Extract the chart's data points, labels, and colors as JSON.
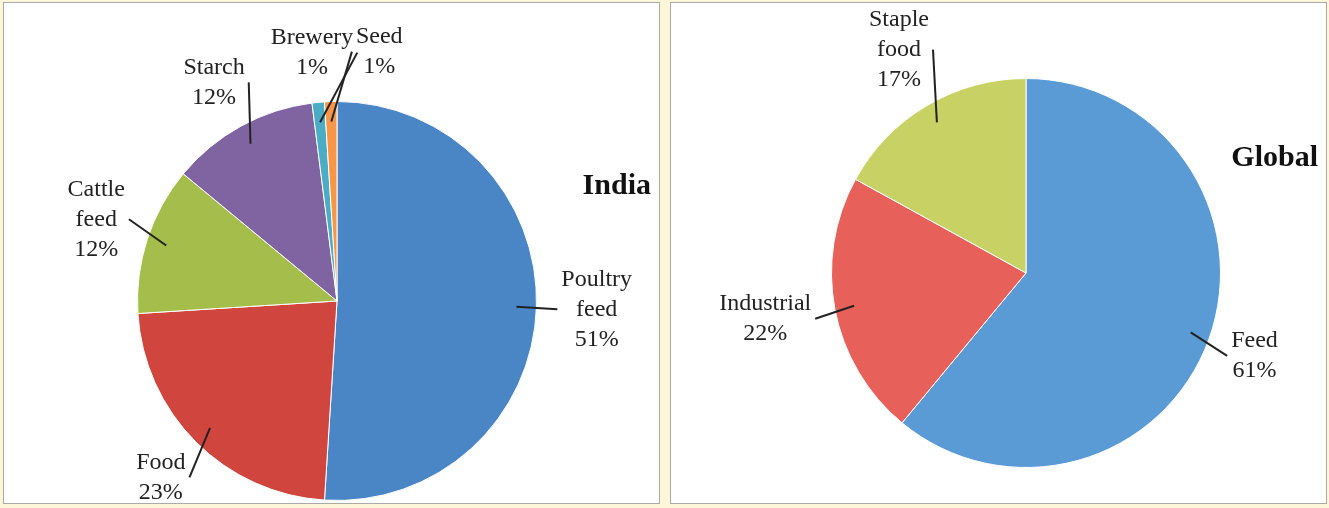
{
  "chart_data": [
    {
      "type": "pie",
      "title": "India",
      "categories": [
        "Poultry feed",
        "Food",
        "Cattle feed",
        "Starch",
        "Brewery",
        "Seed"
      ],
      "values": [
        51,
        23,
        12,
        12,
        1,
        1
      ],
      "value_labels": [
        "51%",
        "23%",
        "12%",
        "12%",
        "1%",
        "1%"
      ],
      "colors": [
        "#4a86c6",
        "#d0463f",
        "#a5be4b",
        "#8064a2",
        "#4bacc6",
        "#f79646"
      ],
      "legend": false
    },
    {
      "type": "pie",
      "title": "Global",
      "categories": [
        "Feed",
        "Industrial",
        "Staple food"
      ],
      "values": [
        61,
        22,
        17
      ],
      "value_labels": [
        "61%",
        "22%",
        "17%"
      ],
      "colors": [
        "#5b9bd5",
        "#e8605a",
        "#c8d264"
      ],
      "legend": false
    }
  ]
}
